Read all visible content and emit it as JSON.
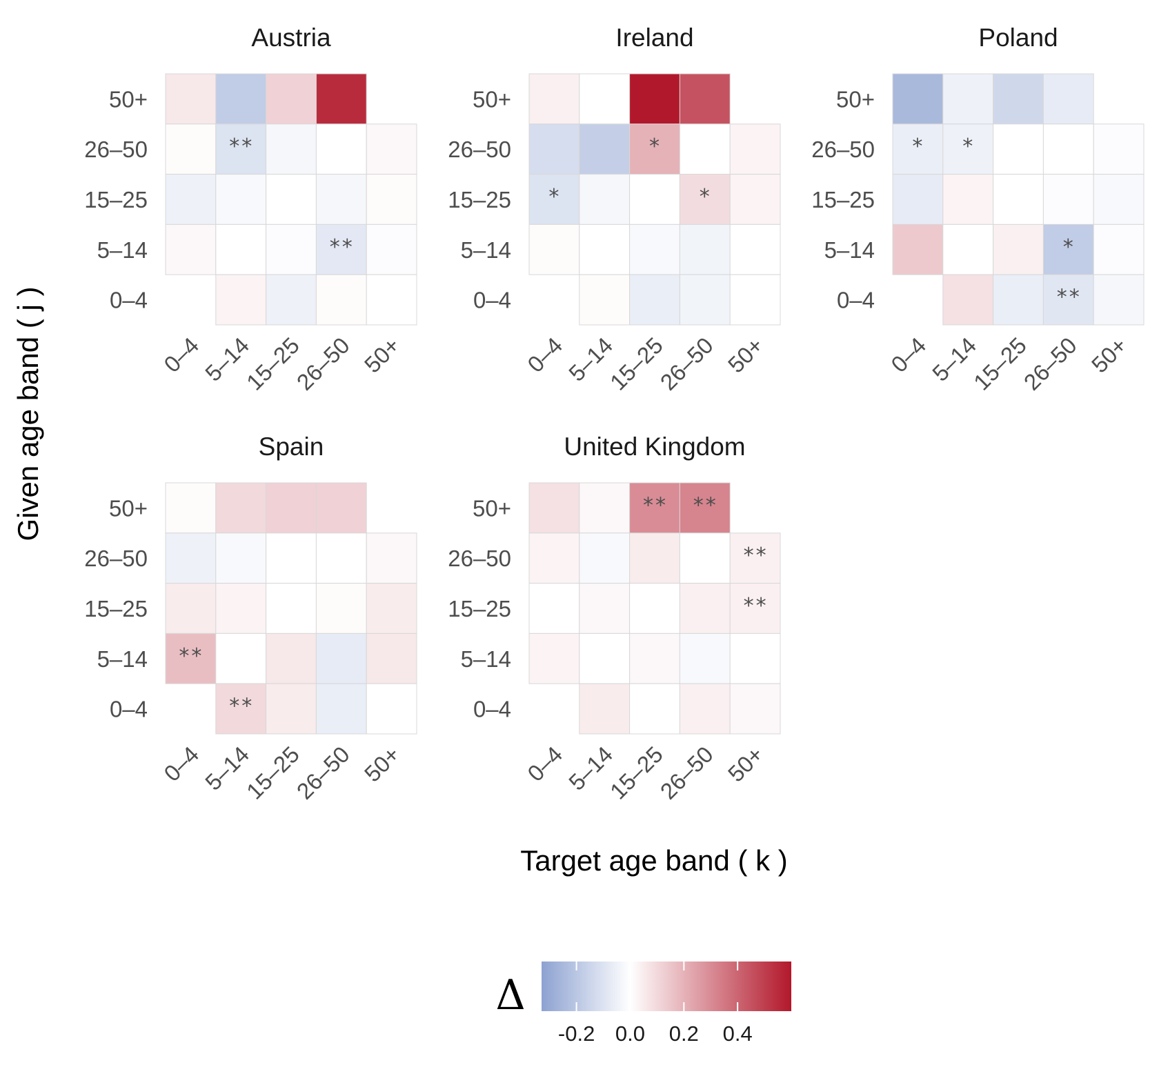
{
  "chart_data": {
    "type": "heatmap",
    "xlabel": "Target age band ( k )",
    "ylabel": "Given age band ( j )",
    "x_categories": [
      "0–4",
      "5–14",
      "15–25",
      "26–50",
      "50+"
    ],
    "y_categories": [
      "0–4",
      "5–14",
      "15–25",
      "26–50",
      "50+"
    ],
    "legend": {
      "title": "Δ",
      "range": [
        -0.33,
        0.6
      ],
      "ticks": [
        -0.2,
        0.0,
        0.2,
        0.4
      ],
      "tick_labels": [
        "-0.2",
        "0.0",
        "0.2",
        "0.4"
      ],
      "colors": {
        "low": "#8da2d1",
        "mid": "#ffffff",
        "high": "#b2182b"
      },
      "placement": "bottom-center"
    },
    "note": "Rows listed from 50+ (top) to 0–4 (bottom); columns 0–4 to 50+. null = no cell drawn.",
    "panels": [
      {
        "title": "Austria",
        "values": [
          [
            0.06,
            -0.18,
            0.12,
            0.55,
            null
          ],
          [
            0.01,
            -0.1,
            -0.03,
            0.0,
            0.02
          ],
          [
            -0.05,
            -0.02,
            0.0,
            -0.03,
            0.01
          ],
          [
            0.02,
            0.0,
            -0.01,
            -0.08,
            -0.01
          ],
          [
            null,
            0.03,
            -0.05,
            0.01,
            0.0
          ]
        ],
        "sig": [
          [
            "",
            "",
            "",
            "",
            ""
          ],
          [
            "",
            "**",
            "",
            "",
            ""
          ],
          [
            "",
            "",
            "",
            "",
            ""
          ],
          [
            "",
            "",
            "",
            "**",
            ""
          ],
          [
            "",
            "",
            "",
            "",
            ""
          ]
        ]
      },
      {
        "title": "Ireland",
        "values": [
          [
            0.04,
            0.0,
            0.6,
            0.45,
            null
          ],
          [
            -0.12,
            -0.17,
            0.2,
            0.0,
            0.03
          ],
          [
            -0.1,
            -0.03,
            0.0,
            0.09,
            0.03
          ],
          [
            0.01,
            0.0,
            -0.02,
            -0.04,
            0.0
          ],
          [
            null,
            0.01,
            -0.06,
            -0.04,
            0.0
          ]
        ],
        "sig": [
          [
            "",
            "",
            "",
            "",
            ""
          ],
          [
            "",
            "",
            "*",
            "",
            ""
          ],
          [
            "*",
            "",
            "",
            "*",
            ""
          ],
          [
            "",
            "",
            "",
            "",
            ""
          ],
          [
            "",
            "",
            "",
            "",
            ""
          ]
        ]
      },
      {
        "title": "Poland",
        "values": [
          [
            -0.25,
            -0.05,
            -0.14,
            -0.07,
            null
          ],
          [
            -0.06,
            -0.05,
            0.0,
            0.0,
            -0.01
          ],
          [
            -0.07,
            0.03,
            0.0,
            -0.01,
            -0.02
          ],
          [
            0.14,
            0.0,
            0.04,
            -0.18,
            -0.01
          ],
          [
            null,
            0.08,
            -0.06,
            -0.09,
            -0.03
          ]
        ],
        "sig": [
          [
            "",
            "",
            "",
            "",
            ""
          ],
          [
            "*",
            "*",
            "",
            "",
            ""
          ],
          [
            "",
            "",
            "",
            "",
            ""
          ],
          [
            "",
            "",
            "",
            "*",
            ""
          ],
          [
            "",
            "",
            "",
            "**",
            ""
          ]
        ]
      },
      {
        "title": "Spain",
        "values": [
          [
            0.01,
            0.1,
            0.12,
            0.12,
            null
          ],
          [
            -0.05,
            -0.02,
            0.0,
            0.0,
            0.02
          ],
          [
            0.05,
            0.03,
            0.0,
            0.01,
            0.05
          ],
          [
            0.17,
            0.0,
            0.06,
            -0.07,
            0.06
          ],
          [
            null,
            0.1,
            0.05,
            -0.06,
            0.0
          ]
        ],
        "sig": [
          [
            "",
            "",
            "",
            "",
            ""
          ],
          [
            "",
            "",
            "",
            "",
            ""
          ],
          [
            "",
            "",
            "",
            "",
            ""
          ],
          [
            "**",
            "",
            "",
            "",
            ""
          ],
          [
            "",
            "**",
            "",
            "",
            ""
          ]
        ]
      },
      {
        "title": "United Kingdom",
        "values": [
          [
            0.08,
            0.02,
            0.3,
            0.32,
            null
          ],
          [
            0.03,
            -0.02,
            0.05,
            0.0,
            0.04
          ],
          [
            0.0,
            0.02,
            0.0,
            0.04,
            0.04
          ],
          [
            0.03,
            0.0,
            0.02,
            -0.02,
            0.0
          ],
          [
            null,
            0.05,
            0.0,
            0.04,
            0.02
          ]
        ],
        "sig": [
          [
            "",
            "",
            "**",
            "**",
            ""
          ],
          [
            "",
            "",
            "",
            "",
            "**"
          ],
          [
            "",
            "",
            "",
            "",
            "**"
          ],
          [
            "",
            "",
            "",
            "",
            ""
          ],
          [
            "",
            "",
            "",
            "",
            ""
          ]
        ]
      }
    ]
  }
}
